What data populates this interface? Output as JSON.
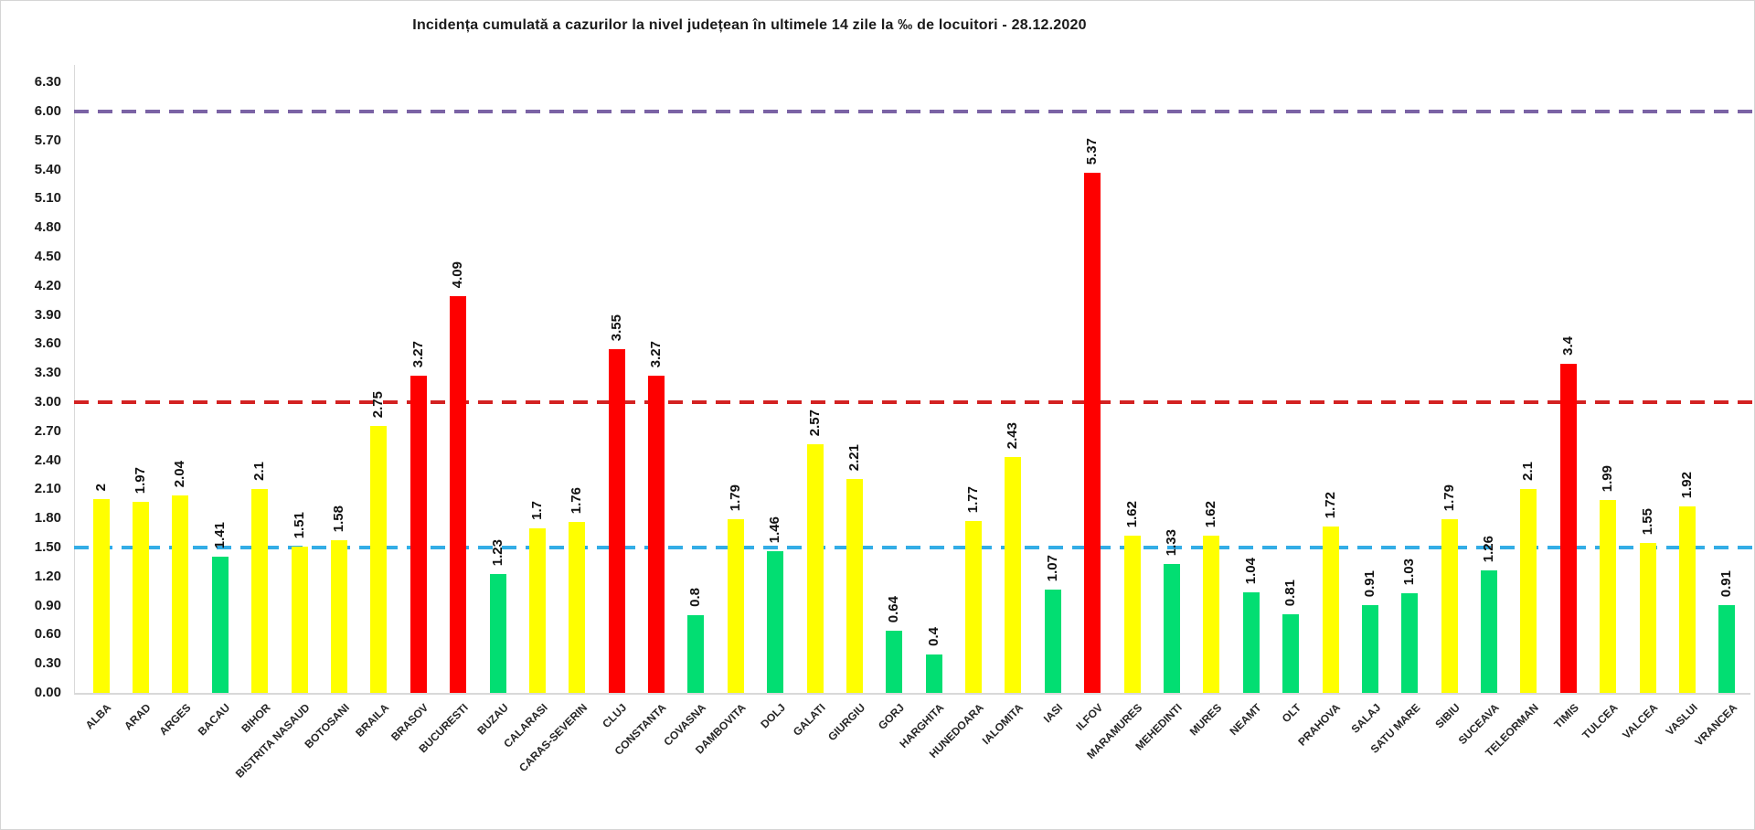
{
  "title": "Incidența cumulată a cazurilor la nivel județean în ultimele 14 zile la ‰ de locuitori - 28.12.2020",
  "chart_data": {
    "type": "bar",
    "title": "Incidența cumulată a cazurilor la nivel județean în ultimele 14 zile la ‰ de locuitori - 28.12.2020",
    "xlabel": "",
    "ylabel": "",
    "ylim": [
      0,
      6.3
    ],
    "ytick_labels": [
      "0.00",
      "0.30",
      "0.60",
      "0.90",
      "1.20",
      "1.50",
      "1.80",
      "2.10",
      "2.40",
      "2.70",
      "3.00",
      "3.30",
      "3.60",
      "3.90",
      "4.20",
      "4.50",
      "4.80",
      "5.10",
      "5.40",
      "5.70",
      "6.00",
      "6.30"
    ],
    "grid": false,
    "legend_position": "none",
    "categories": [
      "ALBA",
      "ARAD",
      "ARGES",
      "BACAU",
      "BIHOR",
      "BISTRITA NASAUD",
      "BOTOSANI",
      "BRAILA",
      "BRASOV",
      "BUCURESTI",
      "BUZAU",
      "CALARASI",
      "CARAS-SEVERIN",
      "CLUJ",
      "CONSTANTA",
      "COVASNA",
      "DAMBOVITA",
      "DOLJ",
      "GALATI",
      "GIURGIU",
      "GORJ",
      "HARGHITA",
      "HUNEDOARA",
      "IALOMITA",
      "IASI",
      "ILFOV",
      "MARAMURES",
      "MEHEDINTI",
      "MURES",
      "NEAMT",
      "OLT",
      "PRAHOVA",
      "SALAJ",
      "SATU MARE",
      "SIBIU",
      "SUCEAVA",
      "TELEORMAN",
      "TIMIS",
      "TULCEA",
      "VALCEA",
      "VASLUI",
      "VRANCEA"
    ],
    "values": [
      2,
      1.97,
      2.04,
      1.41,
      2.1,
      1.51,
      1.58,
      2.75,
      3.27,
      4.09,
      1.23,
      1.7,
      1.76,
      3.55,
      3.27,
      0.8,
      1.79,
      1.46,
      2.57,
      2.21,
      0.64,
      0.4,
      1.77,
      2.43,
      1.07,
      5.37,
      1.62,
      1.33,
      1.62,
      1.04,
      0.81,
      1.72,
      0.91,
      1.03,
      1.79,
      1.26,
      2.1,
      3.4,
      1.99,
      1.55,
      1.92,
      0.91
    ],
    "value_labels": [
      "2",
      "1.97",
      "2.04",
      "1.41",
      "2.1",
      "1.51",
      "1.58",
      "2.75",
      "3.27",
      "4.09",
      "1.23",
      "1.7",
      "1.76",
      "3.55",
      "3.27",
      "0.8",
      "1.79",
      "1.46",
      "2.57",
      "2.21",
      "0.64",
      "0.4",
      "1.77",
      "2.43",
      "1.07",
      "5.37",
      "1.62",
      "1.33",
      "1.62",
      "1.04",
      "0.81",
      "1.72",
      "0.91",
      "1.03",
      "1.79",
      "1.26",
      "2.1",
      "3.4",
      "1.99",
      "1.55",
      "1.92",
      "0.91"
    ],
    "reference_lines": [
      {
        "name": "upper-threshold-line",
        "value": 6.0,
        "color": "#7b63a5",
        "style": "dashed"
      },
      {
        "name": "red-zone-threshold-line",
        "value": 3.0,
        "color": "#d32222",
        "style": "dashed"
      },
      {
        "name": "yellow-zone-threshold-line",
        "value": 1.5,
        "color": "#33ade6",
        "style": "dashed"
      }
    ],
    "color_rules": {
      "red_at_or_above": 3.0,
      "green_below": 1.5,
      "red": "#fe0000",
      "yellow": "#ffff00",
      "green": "#02de72"
    }
  }
}
